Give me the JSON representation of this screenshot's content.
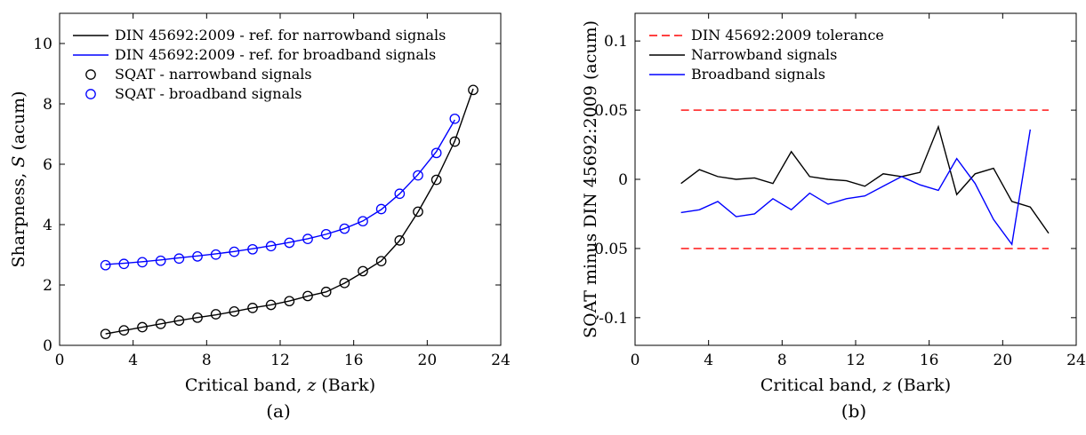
{
  "chart_data": [
    {
      "type": "line",
      "panel_label": "(a)",
      "xlabel": "Critical band, z (Bark)",
      "ylabel": "Sharpness, S (acum)",
      "xlim": [
        0,
        24
      ],
      "ylim": [
        0,
        11
      ],
      "xticks": [
        0,
        4,
        8,
        12,
        16,
        20,
        24
      ],
      "yticks": [
        0,
        2,
        4,
        6,
        8,
        10
      ],
      "grid": false,
      "legend_position": "top-left",
      "colors": {
        "narrowband": "#000000",
        "broadband": "#0000ff"
      },
      "series": [
        {
          "name": "DIN 45692:2009 - ref. for narrowband signals",
          "style": "line",
          "color": "#000000",
          "x": [
            2.5,
            3.5,
            4.5,
            5.5,
            6.5,
            7.5,
            8.5,
            9.5,
            10.5,
            11.5,
            12.5,
            13.5,
            14.5,
            15.5,
            16.5,
            17.5,
            18.5,
            19.5,
            20.5,
            21.5,
            22.5
          ],
          "y": [
            0.38,
            0.49,
            0.6,
            0.71,
            0.82,
            0.92,
            1.01,
            1.12,
            1.24,
            1.34,
            1.47,
            1.63,
            1.77,
            2.06,
            2.42,
            2.8,
            3.47,
            4.42,
            5.5,
            6.77,
            8.5
          ]
        },
        {
          "name": "DIN 45692:2009 - ref. for broadband signals",
          "style": "line",
          "color": "#0000ff",
          "x": [
            2.5,
            3.5,
            4.5,
            5.5,
            6.5,
            7.5,
            8.5,
            9.5,
            10.5,
            11.5,
            12.5,
            13.5,
            14.5,
            15.5,
            16.5,
            17.5,
            18.5,
            19.5,
            20.5,
            21.5
          ],
          "y": [
            2.68,
            2.72,
            2.77,
            2.83,
            2.9,
            2.96,
            3.03,
            3.11,
            3.2,
            3.3,
            3.41,
            3.53,
            3.68,
            3.87,
            4.12,
            4.5,
            5.02,
            5.66,
            6.42,
            7.47
          ]
        },
        {
          "name": "SQAT - narrowband signals",
          "style": "markers",
          "color": "#000000",
          "x": [
            2.5,
            3.5,
            4.5,
            5.5,
            6.5,
            7.5,
            8.5,
            9.5,
            10.5,
            11.5,
            12.5,
            13.5,
            14.5,
            15.5,
            16.5,
            17.5,
            18.5,
            19.5,
            20.5,
            21.5,
            22.5
          ],
          "y": [
            0.377,
            0.497,
            0.602,
            0.71,
            0.821,
            0.917,
            1.03,
            1.122,
            1.239,
            1.339,
            1.465,
            1.634,
            1.772,
            2.065,
            2.458,
            2.789,
            3.474,
            4.428,
            5.484,
            6.75,
            8.461
          ]
        },
        {
          "name": "SQAT - broadband signals",
          "style": "markers",
          "color": "#0000ff",
          "x": [
            2.5,
            3.5,
            4.5,
            5.5,
            6.5,
            7.5,
            8.5,
            9.5,
            10.5,
            11.5,
            12.5,
            13.5,
            14.5,
            15.5,
            16.5,
            17.5,
            18.5,
            19.5,
            20.5,
            21.5
          ],
          "y": [
            2.656,
            2.698,
            2.754,
            2.803,
            2.875,
            2.946,
            3.008,
            3.1,
            3.182,
            3.286,
            3.398,
            3.525,
            3.682,
            3.866,
            4.112,
            4.515,
            5.022,
            5.631,
            6.373,
            7.506
          ]
        }
      ]
    },
    {
      "type": "line",
      "panel_label": "(b)",
      "xlabel": "Critical band, z (Bark)",
      "ylabel": "SQAT minus DIN 45692:2009 (acum)",
      "xlim": [
        0,
        24
      ],
      "ylim": [
        -0.12,
        0.12
      ],
      "xticks": [
        0,
        4,
        8,
        12,
        16,
        20,
        24
      ],
      "yticks": [
        -0.1,
        -0.05,
        0,
        0.05,
        0.1
      ],
      "ytick_labels": [
        "-0.1",
        "-0.05",
        "0",
        "0.05",
        "0.1"
      ],
      "grid": false,
      "legend_position": "top-left",
      "series": [
        {
          "name": "DIN 45692:2009 tolerance",
          "style": "dashed",
          "color": "#ff0000",
          "x": [
            2.5,
            22.5
          ],
          "y": [
            0.05,
            0.05
          ]
        },
        {
          "name": "",
          "style": "dashed",
          "color": "#ff0000",
          "x": [
            2.5,
            22.5
          ],
          "y": [
            -0.05,
            -0.05
          ]
        },
        {
          "name": "Narrowband signals",
          "style": "line",
          "color": "#000000",
          "x": [
            2.5,
            3.5,
            4.5,
            5.5,
            6.5,
            7.5,
            8.5,
            9.5,
            10.5,
            11.5,
            12.5,
            13.5,
            14.5,
            15.5,
            16.5,
            17.5,
            18.5,
            19.5,
            20.5,
            21.5,
            22.5
          ],
          "y": [
            -0.003,
            0.007,
            0.002,
            0.0,
            0.001,
            -0.003,
            0.02,
            0.002,
            0.0,
            -0.001,
            -0.005,
            0.004,
            0.002,
            0.005,
            0.038,
            -0.011,
            0.004,
            0.008,
            -0.016,
            -0.02,
            -0.039
          ]
        },
        {
          "name": "Broadband signals",
          "style": "line",
          "color": "#0000ff",
          "x": [
            2.5,
            3.5,
            4.5,
            5.5,
            6.5,
            7.5,
            8.5,
            9.5,
            10.5,
            11.5,
            12.5,
            13.5,
            14.5,
            15.5,
            16.5,
            17.5,
            18.5,
            19.5,
            20.5,
            21.5
          ],
          "y": [
            -0.024,
            -0.022,
            -0.016,
            -0.027,
            -0.025,
            -0.014,
            -0.022,
            -0.01,
            -0.018,
            -0.014,
            -0.012,
            -0.005,
            0.002,
            -0.004,
            -0.008,
            0.015,
            -0.003,
            -0.029,
            -0.047,
            0.036
          ]
        }
      ]
    }
  ]
}
